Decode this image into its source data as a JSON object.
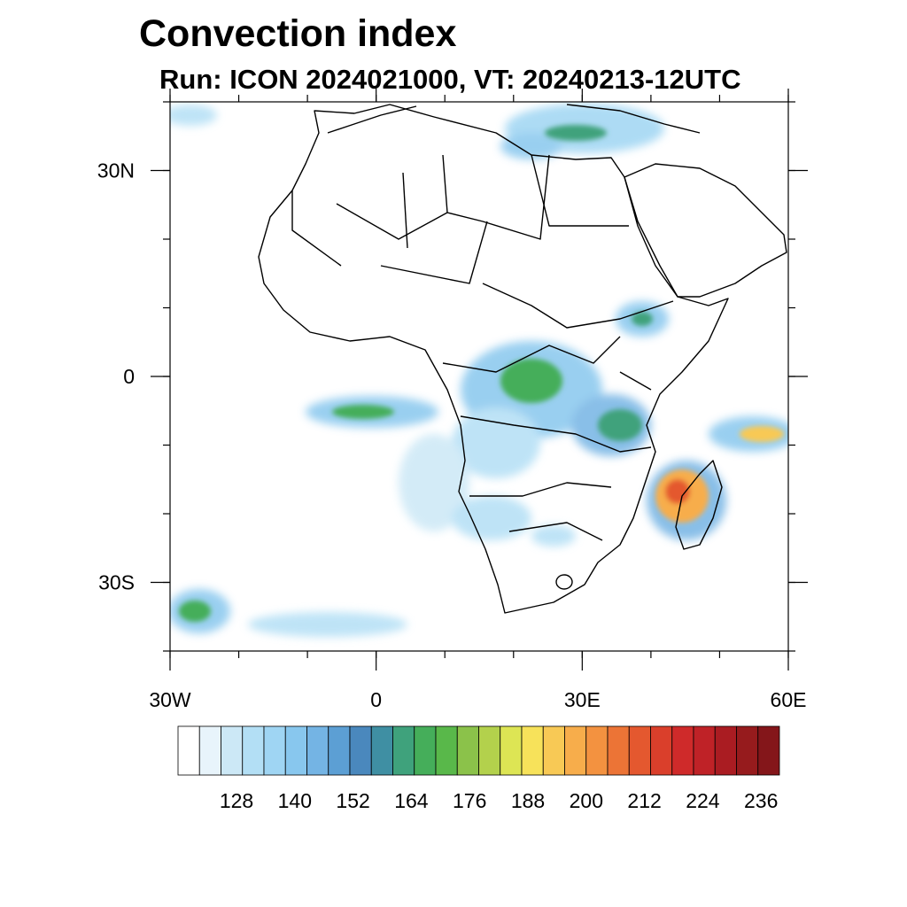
{
  "title": "Convection index",
  "subtitle": "Run: ICON 2024021000,  VT: 20240213-12UTC",
  "map": {
    "region": "Africa",
    "lon_range": [
      -30,
      60
    ],
    "lat_range": [
      -40,
      40
    ],
    "lon_ticks": [
      {
        "value": -30,
        "label": "30W"
      },
      {
        "value": 0,
        "label": "0"
      },
      {
        "value": 30,
        "label": "30E"
      },
      {
        "value": 60,
        "label": "60E"
      }
    ],
    "lat_ticks": [
      {
        "value": 30,
        "label": "30N"
      },
      {
        "value": 0,
        "label": "0"
      },
      {
        "value": -30,
        "label": "30S"
      }
    ]
  },
  "colorbar": {
    "levels_labeled": [
      "128",
      "140",
      "152",
      "164",
      "176",
      "188",
      "200",
      "212",
      "224",
      "236"
    ],
    "colors": [
      "#ffffff",
      "#e8f4fb",
      "#cce8f6",
      "#b3dff5",
      "#9fd5f3",
      "#88c7ee",
      "#74b4e4",
      "#5c9fd4",
      "#4a88bd",
      "#3f8fa3",
      "#3fa27c",
      "#45ae5a",
      "#59b84a",
      "#8bc24a",
      "#b3d14c",
      "#dde554",
      "#f7e25a",
      "#f8c955",
      "#f7ad4b",
      "#f39240",
      "#ec7436",
      "#e4582f",
      "#da3f2b",
      "#cf2a2a",
      "#bf2227",
      "#aa1c22",
      "#961b1d",
      "#84161a"
    ]
  }
}
